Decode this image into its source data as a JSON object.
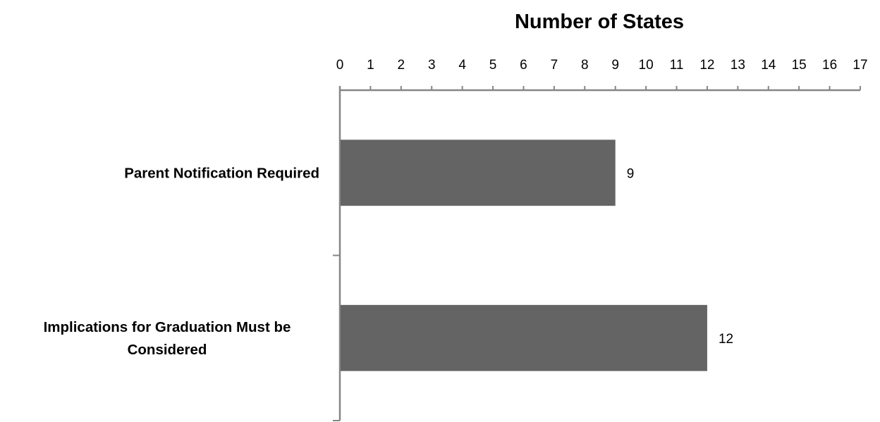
{
  "chart_data": {
    "type": "bar",
    "orientation": "horizontal",
    "title": "Number of States",
    "categories": [
      [
        "Parent Notification Required"
      ],
      [
        "Implications for Graduation Must be",
        "Considered"
      ]
    ],
    "values": [
      9,
      12
    ],
    "xlim": [
      0,
      17
    ],
    "x_ticks": [
      "0",
      "1",
      "2",
      "3",
      "4",
      "5",
      "6",
      "7",
      "8",
      "9",
      "10",
      "11",
      "12",
      "13",
      "14",
      "15",
      "16",
      "17"
    ],
    "axis_position": "top",
    "grid": false,
    "legend": "none",
    "data_labels": [
      "9",
      "12"
    ],
    "bar_color": "#646464",
    "axis_color": "#868686"
  }
}
